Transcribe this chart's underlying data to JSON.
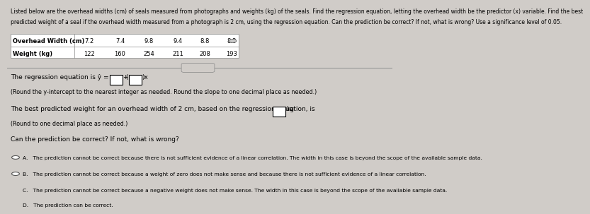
{
  "bg_color": "#d0ccc8",
  "panel_color": "#e8e4e0",
  "title_text_line1": "Listed below are the overhead widths (cm) of seals measured from photographs and weights (kg) of the seals. Find the regression equation, letting the overhead width be the predictor (x) variable. Find the best",
  "title_text_line2": "predicted weight of a seal if the overhead width measured from a photograph is 2 cm, using the regression equation. Can the prediction be correct? If not, what is wrong? Use a significance level of 0.05.",
  "table_headers": [
    "Overhead Width (cm)",
    "7.2",
    "7.4",
    "9.8",
    "9.4",
    "8.8",
    "8.3"
  ],
  "table_row2": [
    "Weight (kg)",
    "122",
    "160",
    "254",
    "211",
    "208",
    "193"
  ],
  "regression_line2": "(Round the y-intercept to the nearest integer as needed. Round the slope to one decimal place as needed.)",
  "predicted_line2": "(Round to one decimal place as needed.)",
  "question": "Can the prediction be correct? If not, what is wrong?",
  "option_a": "A.   The prediction cannot be correct because there is not sufficient evidence of a linear correlation. The width in this case is beyond the scope of the available sample data.",
  "option_b": "B.   The prediction cannot be correct because a weight of zero does not make sense and because there is not sufficient evidence of a linear correlation.",
  "option_c": "C.   The prediction cannot be correct because a negative weight does not make sense. The width in this case is beyond the scope of the available sample data.",
  "option_d": "D.   The prediction can be correct."
}
